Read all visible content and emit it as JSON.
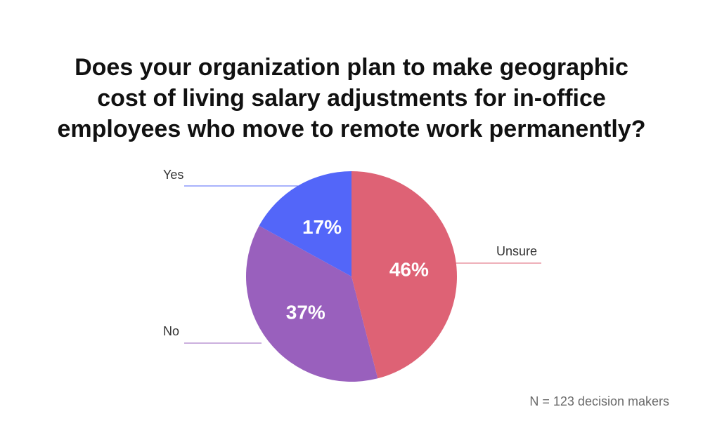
{
  "chart_data": {
    "type": "pie",
    "title_lines": [
      "Does your organization plan to make geographic",
      "cost of living salary adjustments for in-office",
      "employees who move to remote work permanently?"
    ],
    "slices": [
      {
        "label": "Unsure",
        "value": 46,
        "display": "46%",
        "color": "#de6275"
      },
      {
        "label": "No",
        "value": 37,
        "display": "37%",
        "color": "#9960bd"
      },
      {
        "label": "Yes",
        "value": 17,
        "display": "17%",
        "color": "#5366f9"
      }
    ],
    "start": "12 o'clock",
    "direction": "clockwise",
    "legend": "external labels with leader lines",
    "footnote": "N = 123 decision makers"
  }
}
